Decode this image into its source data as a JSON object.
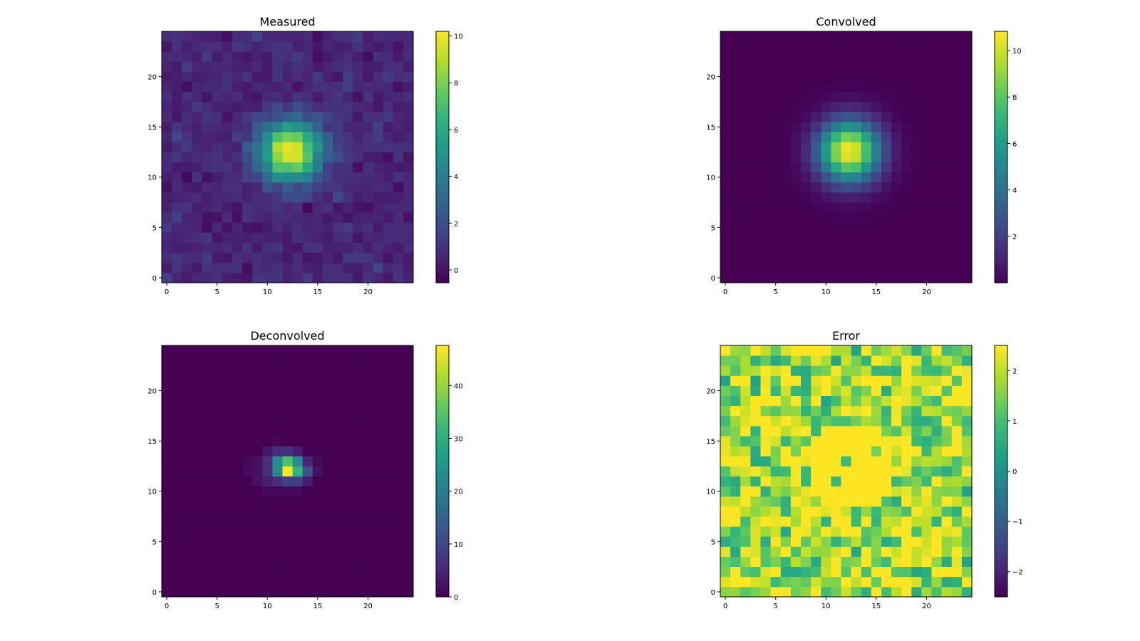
{
  "chart_data": [
    {
      "type": "heatmap",
      "title": "Measured",
      "grid_size": 25,
      "xticks": [
        0,
        5,
        10,
        15,
        20
      ],
      "yticks": [
        0,
        5,
        10,
        15,
        20
      ],
      "xlim": [
        -0.5,
        24.5
      ],
      "ylim": [
        -0.5,
        24.5
      ],
      "colormap": "viridis",
      "color_range": [
        -0.55,
        10.2
      ],
      "colorbar_ticks": [
        0,
        2,
        4,
        6,
        8,
        10
      ],
      "model": {
        "kind": "gaussian_plus_noise",
        "center": [
          12.3,
          12.6
        ],
        "sigma": 2.1,
        "amplitude": 9.6,
        "offset": 0.6,
        "noise_std": 0.35,
        "seed": 7
      }
    },
    {
      "type": "heatmap",
      "title": "Convolved",
      "grid_size": 25,
      "xticks": [
        0,
        5,
        10,
        15,
        20
      ],
      "yticks": [
        0,
        5,
        10,
        15,
        20
      ],
      "xlim": [
        -0.5,
        24.5
      ],
      "ylim": [
        -0.5,
        24.5
      ],
      "colormap": "viridis",
      "color_range": [
        0.0,
        10.83
      ],
      "colorbar_ticks": [
        2,
        4,
        6,
        8,
        10
      ],
      "model": {
        "kind": "gaussian",
        "center": [
          12.3,
          12.6
        ],
        "sigma": 2.1,
        "amplitude": 10.8,
        "offset": 0
      }
    },
    {
      "type": "heatmap",
      "title": "Deconvolved",
      "grid_size": 25,
      "xticks": [
        0,
        5,
        10,
        15,
        20
      ],
      "yticks": [
        0,
        5,
        10,
        15,
        20
      ],
      "xlim": [
        -0.5,
        24.5
      ],
      "ylim": [
        -0.5,
        24.5
      ],
      "colormap": "viridis",
      "color_range": [
        0,
        47.6
      ],
      "colorbar_ticks": [
        0,
        10,
        20,
        30,
        40
      ],
      "model": {
        "kind": "sparse",
        "background": 0,
        "cells": [
          [
            11,
            15,
            1
          ],
          [
            10,
            14,
            3
          ],
          [
            11,
            14,
            6
          ],
          [
            12,
            14,
            7
          ],
          [
            13,
            14,
            4
          ],
          [
            8,
            13,
            1
          ],
          [
            9,
            13,
            2
          ],
          [
            10,
            13,
            6
          ],
          [
            11,
            13,
            23
          ],
          [
            12,
            13,
            34
          ],
          [
            13,
            13,
            23
          ],
          [
            14,
            13,
            5
          ],
          [
            15,
            13,
            1
          ],
          [
            8,
            12,
            1
          ],
          [
            9,
            12,
            2
          ],
          [
            10,
            12,
            6
          ],
          [
            11,
            12,
            23
          ],
          [
            12,
            12,
            47
          ],
          [
            13,
            12,
            31
          ],
          [
            14,
            12,
            12
          ],
          [
            15,
            12,
            2
          ],
          [
            9,
            11,
            2
          ],
          [
            10,
            11,
            4
          ],
          [
            11,
            11,
            6
          ],
          [
            12,
            11,
            9
          ],
          [
            13,
            11,
            9
          ],
          [
            14,
            11,
            4
          ],
          [
            10,
            10,
            1
          ],
          [
            11,
            10,
            1
          ],
          [
            12,
            10,
            1
          ],
          [
            13,
            10,
            1
          ]
        ]
      }
    },
    {
      "type": "heatmap",
      "title": "Error",
      "grid_size": 25,
      "xticks": [
        0,
        5,
        10,
        15,
        20
      ],
      "yticks": [
        0,
        5,
        10,
        15,
        20
      ],
      "xlim": [
        -0.5,
        24.5
      ],
      "ylim": [
        -0.5,
        24.5
      ],
      "colormap": "viridis",
      "color_range": [
        -2.5,
        2.5
      ],
      "colorbar_ticks": [
        -2,
        -1,
        0,
        1,
        2
      ],
      "model": {
        "kind": "uniform_noise_clipped",
        "low": 0.4,
        "high": 3.2,
        "clip_max": 2.5,
        "center_clear": {
          "center": [
            12.5,
            12.5
          ],
          "radius": 4.5,
          "value": 2.5
        },
        "seed": 21
      }
    }
  ]
}
